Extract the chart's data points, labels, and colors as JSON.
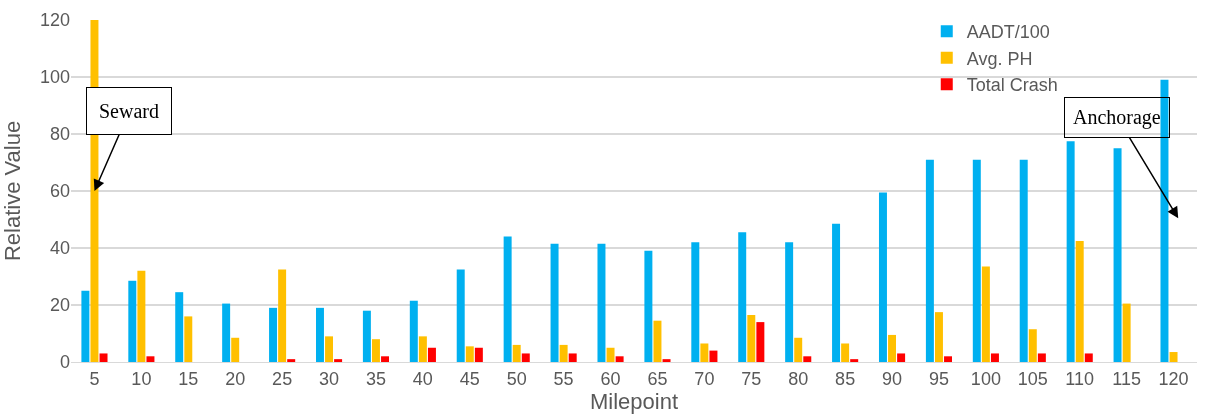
{
  "chart_data": {
    "type": "bar",
    "xlabel": "Milepoint",
    "ylabel": "Relative Value",
    "categories": [
      "5",
      "10",
      "15",
      "20",
      "25",
      "30",
      "35",
      "40",
      "45",
      "50",
      "55",
      "60",
      "65",
      "70",
      "75",
      "80",
      "85",
      "90",
      "95",
      "100",
      "105",
      "110",
      "115",
      "120"
    ],
    "series": [
      {
        "name": "AADT/100",
        "color": "#00b0f0",
        "values": [
          25,
          28.5,
          24.5,
          20.5,
          19,
          19,
          18,
          21.5,
          32.5,
          44,
          41.5,
          41.5,
          39,
          42,
          45.5,
          42,
          48.5,
          59.5,
          71,
          71,
          71,
          77.5,
          75,
          99
        ]
      },
      {
        "name": "Avg. PH",
        "color": "#ffc000",
        "values": [
          120,
          32,
          16,
          8.5,
          32.5,
          9,
          8,
          9,
          5.5,
          6,
          6,
          5,
          14.5,
          6.5,
          16.5,
          8.5,
          6.5,
          9.5,
          17.5,
          33.5,
          11.5,
          42.5,
          20.5,
          3.5
        ]
      },
      {
        "name": "Total Crash",
        "color": "#ff0000",
        "values": [
          3,
          2,
          0,
          0,
          1,
          1,
          2,
          5,
          5,
          3,
          3,
          2,
          1,
          4,
          14,
          2,
          1,
          3,
          2,
          3,
          3,
          3,
          0,
          0
        ]
      }
    ],
    "ylim": [
      0,
      120
    ],
    "yticks": [
      0,
      20,
      40,
      60,
      80,
      100,
      120
    ],
    "grid": "y",
    "legend": "top right",
    "annotations": [
      {
        "text": "Seward",
        "x": "5",
        "y": 60
      },
      "Anchorage"
    ]
  }
}
